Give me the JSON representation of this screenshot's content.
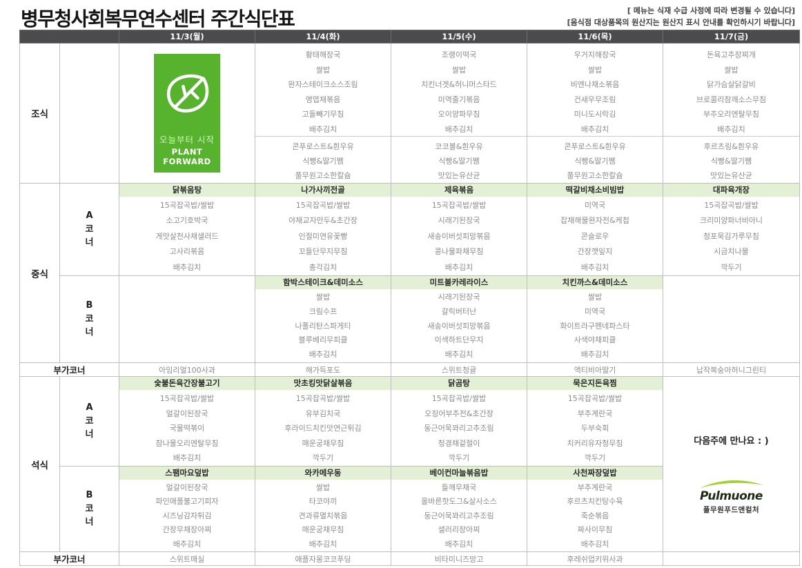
{
  "title": "병무청사회복무연수센터 주간식단표",
  "notes": {
    "line1": "[ 메뉴는 식재 수급 사정에 따라 변경될 수 있습니다]",
    "line2": "[음식점 대상품목의 원산지는 원산지 표시 안내를 확인하시기 바랍니다]"
  },
  "colors": {
    "header_bg": "#4b4b4d",
    "menu_title_bg": "#e4f0d5",
    "badge_green": "#57b32e",
    "brand_swoosh": "#a7cf3a"
  },
  "days": [
    "11/3(월)",
    "11/4(화)",
    "11/5(수)",
    "11/6(목)",
    "11/7(금)"
  ],
  "labels": {
    "breakfast": "조식",
    "lunch": "중식",
    "dinner": "석식",
    "corner_a": "A코너",
    "corner_b": "B코너",
    "extra": "부가코너"
  },
  "badge": {
    "line1": "오늘부터 시작",
    "line2": "PLANT FORWARD"
  },
  "breakfast": {
    "tue": {
      "main": [
        "황태해장국",
        "쌀밥",
        "완자스테이크소스조림",
        "명엽채볶음",
        "고들빼기무침",
        "배추김치"
      ],
      "sub": [
        "콘푸로스트&흰우유",
        "식빵&딸기쨈",
        "풀무원고소한칼슘"
      ]
    },
    "wed": {
      "main": [
        "조랭이떡국",
        "쌀밥",
        "치킨너겟&허니머스타드",
        "미역줄기볶음",
        "오이양파무침",
        "배추김치"
      ],
      "sub": [
        "코코볼&흰우유",
        "식빵&딸기쨈",
        "맛있는유산균"
      ]
    },
    "thu": {
      "main": [
        "우거지해장국",
        "쌀밥",
        "비엔나채소볶음",
        "건새우무조림",
        "미니도시락김",
        "배추김치"
      ],
      "sub": [
        "콘푸로스트&흰우유",
        "식빵&딸기쨈",
        "풀무원고소한칼슘"
      ]
    },
    "fri": {
      "main": [
        "돈육고추장찌개",
        "쌀밥",
        "닭가슴살닭갈비",
        "브로콜리참깨소스무침",
        "부추오리엔탈무침",
        "배추김치"
      ],
      "sub": [
        "후르츠링&흰우유",
        "식빵&딸기쨈",
        "맛있는유산균"
      ]
    }
  },
  "lunch_a": {
    "mon": {
      "title": "닭볶음탕",
      "items": [
        "15곡잡곡밥/쌀밥",
        "소고기호박국",
        "게맛살천사채샐러드",
        "고사리볶음",
        "배추김치"
      ]
    },
    "tue": {
      "title": "나가사끼전골",
      "items": [
        "15곡잡곡밥/쌀밥",
        "야채교자만두&초간장",
        "인절미연유꽃빵",
        "꼬들단무지무침",
        "총각김치"
      ]
    },
    "wed": {
      "title": "제육볶음",
      "items": [
        "15곡잡곡밥/쌀밥",
        "시래기된장국",
        "새송이버섯피망볶음",
        "콩나물파채무침",
        "배추김치"
      ]
    },
    "thu": {
      "title": "떡갈비채소비빔밥",
      "items": [
        "미역국",
        "잡채해물완자전&케첩",
        "콘슬로우",
        "간장깻잎지",
        "배추김치"
      ]
    },
    "fri": {
      "title": "대파육개장",
      "items": [
        "15곡잡곡밥/쌀밥",
        "크리미양파너비아니",
        "청포묵김가루무침",
        "시금치나물",
        "깍두기"
      ]
    }
  },
  "lunch_b": {
    "tue": {
      "title": "함박스테이크&데미소스",
      "items": [
        "쌀밥",
        "크림수프",
        "나폴리탄스파게티",
        "블루베리무피클",
        "배추김치"
      ]
    },
    "wed": {
      "title": "미트볼카레라이스",
      "items": [
        "시래기된장국",
        "갈릭버터난",
        "새송이버섯피망볶음",
        "이색하트단무지",
        "배추김치"
      ]
    },
    "thu": {
      "title": "치킨까스&데미소스",
      "items": [
        "쌀밥",
        "미역국",
        "화이트라구펜네파스타",
        "사색야채피클",
        "배추김치"
      ]
    }
  },
  "lunch_extra": {
    "mon": "아임리얼100사과",
    "tue": "해가득포도",
    "wed": "스위트청귤",
    "thu": "액티비아딸기",
    "fri": "납작복숭아허니그린티"
  },
  "dinner_a": {
    "mon": {
      "title": "숯불돈육간장불고기",
      "items": [
        "15곡잡곡밥/쌀밥",
        "얼갈이된장국",
        "국물떡볶이",
        "참나물오리엔탈무침",
        "배추김치"
      ]
    },
    "tue": {
      "title": "맛초킹맛닭살볶음",
      "items": [
        "15곡잡곡밥/쌀밥",
        "유부김치국",
        "후라이드치킨맛연근튀김",
        "매운궁채무침",
        "깍두기"
      ]
    },
    "wed": {
      "title": "닭곰탕",
      "items": [
        "15곡잡곡밥/쌀밥",
        "오징어부추전&초간장",
        "둥근어묵꽈리고추조림",
        "청경채겉절이",
        "깍두기"
      ]
    },
    "thu": {
      "title": "묵은지돈육찜",
      "items": [
        "15곡잡곡밥/쌀밥",
        "부추계란국",
        "두부숙회",
        "치커리유자청무침",
        "깍두기"
      ]
    }
  },
  "dinner_b": {
    "mon": {
      "title": "스팸마요덮밥",
      "items": [
        "얼갈이된장국",
        "파인애플불고기피자",
        "시즈닝감자튀김",
        "간장무채장아찌",
        "배추김치"
      ]
    },
    "tue": {
      "title": "와카메우동",
      "items": [
        "쌀밥",
        "타코야끼",
        "견과류멸치볶음",
        "매운궁채무침",
        "배추김치"
      ]
    },
    "wed": {
      "title": "베이컨마늘볶음밥",
      "items": [
        "들깨무채국",
        "올바른핫도그&살사소스",
        "둥근어묵꽈리고추조림",
        "샐러리장아찌",
        "배추김치"
      ]
    },
    "thu": {
      "title": "사천짜장덮밥",
      "items": [
        "부추계란국",
        "후르츠치킨탕수육",
        "죽순볶음",
        "짜사이무침",
        "배추김치"
      ]
    }
  },
  "dinner_extra": {
    "mon": "스위트매실",
    "tue": "애플자몽코코푸딩",
    "wed": "비타미니즈망고",
    "thu": "후레쉬업키위사과"
  },
  "friday_dinner": {
    "message": "다음주에 만나요 : )",
    "brand": "Pulmuone",
    "brand_sub": "풀무원푸드앤컬처"
  }
}
